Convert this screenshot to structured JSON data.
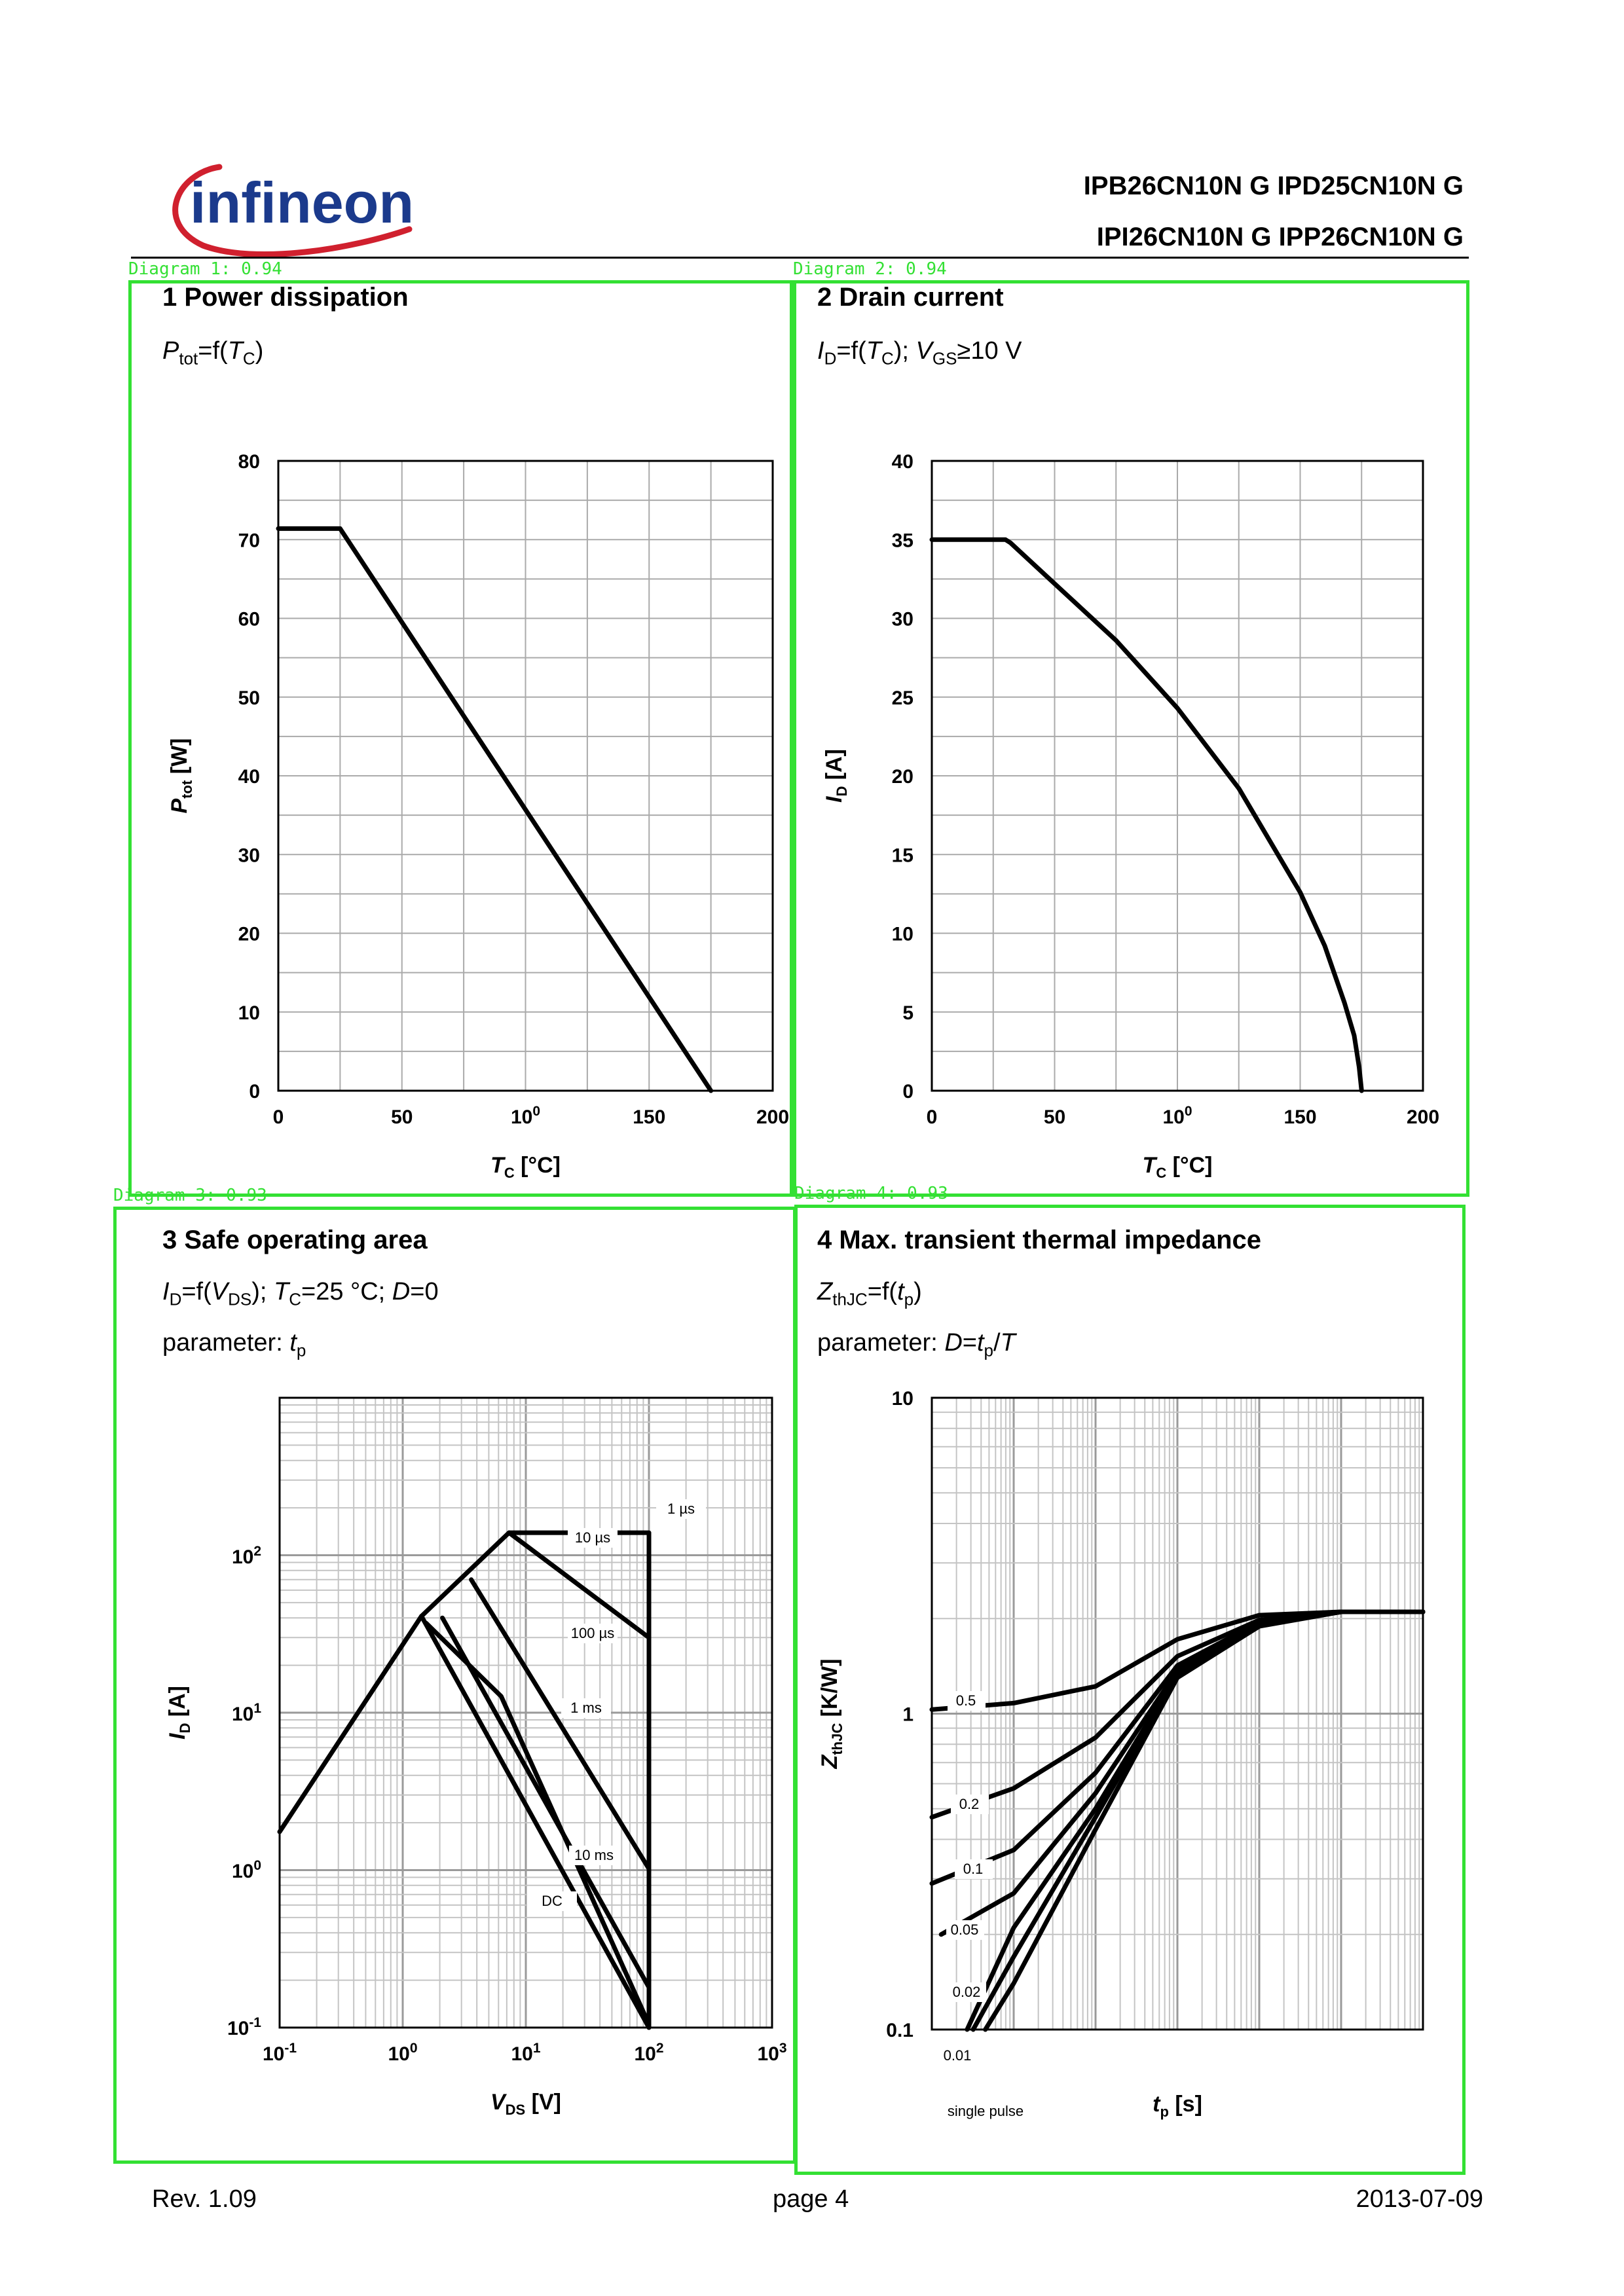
{
  "header": {
    "brand": "infineon",
    "part_numbers_line1": "IPB26CN10N G  IPD25CN10N G",
    "part_numbers_line2": "IPI26CN10N G  IPP26CN10N G",
    "brand_color": "#1b3a8c",
    "swoosh_color": "#d0202e"
  },
  "detection_tags": [
    "Diagram 1: 0.94",
    "Diagram 2: 0.94",
    "Diagram 3: 0.93",
    "Diagram 4: 0.93"
  ],
  "panels": [
    {
      "title": "1 Power dissipation",
      "sub1": {
        "a": "P",
        "a_sub": "tot",
        "b": "=f(",
        "c": "T",
        "c_sub": "C",
        "d": ")"
      }
    },
    {
      "title": "2 Drain current",
      "sub1": {
        "a": "I",
        "a_sub": "D",
        "b": "=f(",
        "c": "T",
        "c_sub": "C",
        "d": "); ",
        "e": "V",
        "e_sub": "GS",
        "f": "≥10 V"
      }
    },
    {
      "title": "3 Safe operating area",
      "sub1": {
        "a": "I",
        "a_sub": "D",
        "b": "=f(",
        "c": "V",
        "c_sub": "DS",
        "d": "); ",
        "e": "T",
        "e_sub": "C",
        "f": "=25 °C; ",
        "g": "D",
        "h": "=0"
      },
      "sub2": {
        "a": "parameter: ",
        "b": "t",
        "b_sub": "p"
      }
    },
    {
      "title": "4 Max. transient thermal impedance",
      "sub1": {
        "a": "Z",
        "a_sub": "thJC",
        "b": "=f(",
        "c": "t",
        "c_sub": "p",
        "d": ")"
      },
      "sub2": {
        "a": "parameter: ",
        "b": "D",
        "c": "=",
        "d": "t",
        "d_sub": "p",
        "e": "/",
        "f": "T"
      }
    }
  ],
  "chart_data": [
    {
      "type": "line",
      "title": "1 Power dissipation",
      "xlabel": "TC [°C]",
      "ylabel": "Ptot [W]",
      "xlim": [
        0,
        200
      ],
      "ylim": [
        0,
        80
      ],
      "xticks": [
        "0",
        "50",
        "100",
        "150",
        "200"
      ],
      "yticks": [
        "0",
        "10",
        "20",
        "30",
        "40",
        "50",
        "60",
        "70",
        "80"
      ],
      "grid": true,
      "series": [
        {
          "x": [
            0,
            25,
            175
          ],
          "y": [
            71.4,
            71.4,
            0
          ]
        }
      ]
    },
    {
      "type": "line",
      "title": "2 Drain current",
      "xlabel": "TC [°C]",
      "ylabel": "ID [A]",
      "xlim": [
        0,
        200
      ],
      "ylim": [
        0,
        40
      ],
      "xticks": [
        "0",
        "50",
        "100",
        "150",
        "200"
      ],
      "yticks": [
        "0",
        "5",
        "10",
        "15",
        "20",
        "25",
        "30",
        "35",
        "40"
      ],
      "grid": true,
      "series": [
        {
          "x": [
            0,
            30,
            32,
            50,
            75,
            100,
            125,
            150,
            160,
            168,
            172,
            174,
            175
          ],
          "y": [
            35,
            35,
            34.8,
            32.2,
            28.6,
            24.3,
            19.2,
            12.6,
            9.2,
            5.6,
            3.5,
            1.5,
            0
          ]
        }
      ]
    },
    {
      "type": "line",
      "title": "3 Safe operating area",
      "xlabel": "VDS [V]",
      "ylabel": "ID [A]",
      "xscale": "log",
      "yscale": "log",
      "xlim": [
        0.1,
        1000
      ],
      "ylim": [
        0.1,
        1000
      ],
      "xticks": [
        "10-1",
        "100",
        "101",
        "102",
        "103"
      ],
      "yticks": [
        "10-1",
        "100",
        "101",
        "102"
      ],
      "grid": true,
      "series": [
        {
          "name": "1 µs",
          "x": [
            0.1,
            1.42,
            7.3,
            100,
            100
          ],
          "y": [
            1.75,
            41,
            139,
            139,
            0.1
          ]
        },
        {
          "name": "10 µs",
          "x": [
            7.3,
            100
          ],
          "y": [
            139,
            30
          ]
        },
        {
          "name": "100 µs",
          "x": [
            3.6,
            100
          ],
          "y": [
            70,
            1.02
          ]
        },
        {
          "name": "1 ms",
          "x": [
            2.1,
            100
          ],
          "y": [
            40,
            0.18
          ]
        },
        {
          "name": "10 ms",
          "x": [
            1.55,
            6.3,
            100
          ],
          "y": [
            37,
            12.7,
            0.105
          ]
        },
        {
          "name": "DC",
          "x": [
            1.42,
            100
          ],
          "y": [
            41,
            0.1
          ]
        }
      ],
      "labels": [
        "1 µs",
        "10 µs",
        "100 µs",
        "1 ms",
        "10 ms",
        "DC"
      ]
    },
    {
      "type": "line",
      "title": "4 Max. transient thermal impedance",
      "xlabel": "tp [s]",
      "ylabel": "ZthJC [K/W]",
      "xscale": "log",
      "yscale": "log",
      "xlim": [
        1e-06,
        1
      ],
      "ylim": [
        0.1,
        10
      ],
      "yticks": [
        "0.1",
        "1",
        "10"
      ],
      "grid": true,
      "series": [
        {
          "name": "0.5",
          "x": [
            1e-06,
            1e-05,
            0.0001,
            0.001,
            0.01,
            0.1,
            1
          ],
          "y": [
            1.03,
            1.08,
            1.22,
            1.72,
            2.05,
            2.1,
            2.1
          ]
        },
        {
          "name": "0.2",
          "x": [
            1e-06,
            1e-05,
            0.0001,
            0.001,
            0.01,
            0.1,
            1
          ],
          "y": [
            0.47,
            0.58,
            0.84,
            1.52,
            1.98,
            2.1,
            2.1
          ]
        },
        {
          "name": "0.1",
          "x": [
            1e-06,
            1e-05,
            0.0001,
            0.001,
            0.01,
            0.1,
            1
          ],
          "y": [
            0.29,
            0.37,
            0.65,
            1.42,
            1.95,
            2.1,
            2.1
          ]
        },
        {
          "name": "0.05",
          "x": [
            1.3e-06,
            1e-05,
            0.0001,
            0.001,
            0.01,
            0.1,
            1
          ],
          "y": [
            0.2,
            0.27,
            0.56,
            1.37,
            1.93,
            2.1,
            2.1
          ]
        },
        {
          "name": "0.02",
          "x": [
            2.7e-06,
            1e-05,
            0.0001,
            0.001,
            0.01,
            0.1,
            1
          ],
          "y": [
            0.1,
            0.21,
            0.5,
            1.34,
            1.91,
            2.1,
            2.1
          ]
        },
        {
          "name": "0.01",
          "x": [
            3.2e-06,
            1e-05,
            0.0001,
            0.001,
            0.01,
            0.1,
            1
          ],
          "y": [
            0.1,
            0.17,
            0.47,
            1.32,
            1.9,
            2.1,
            2.1
          ]
        },
        {
          "name": "single pulse",
          "x": [
            4.5e-06,
            1e-05,
            0.0001,
            0.001,
            0.01,
            0.1,
            1
          ],
          "y": [
            0.1,
            0.14,
            0.43,
            1.3,
            1.89,
            2.1,
            2.1
          ]
        }
      ],
      "labels": [
        "0.5",
        "0.2",
        "0.1",
        "0.05",
        "0.02",
        "0.01",
        "single pulse"
      ]
    }
  ],
  "footer": {
    "rev": "Rev. 1.09",
    "page": "page 4",
    "date": "2013-07-09"
  }
}
